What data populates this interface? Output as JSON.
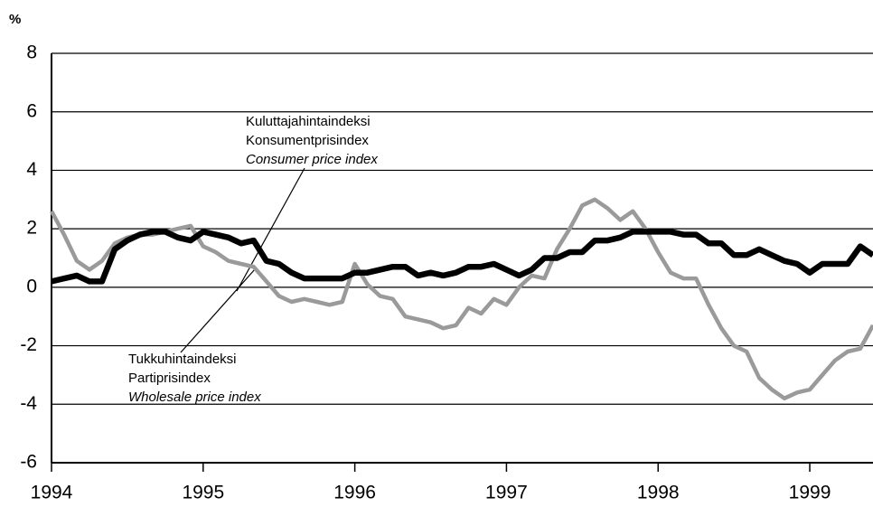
{
  "chart_data": {
    "type": "line",
    "ylabel": "%",
    "x": [
      1994,
      1994.083,
      1994.167,
      1994.25,
      1994.333,
      1994.417,
      1994.5,
      1994.583,
      1994.667,
      1994.75,
      1994.833,
      1994.917,
      1995,
      1995.083,
      1995.167,
      1995.25,
      1995.333,
      1995.417,
      1995.5,
      1995.583,
      1995.667,
      1995.75,
      1995.833,
      1995.917,
      1996,
      1996.083,
      1996.167,
      1996.25,
      1996.333,
      1996.417,
      1996.5,
      1996.583,
      1996.667,
      1996.75,
      1996.833,
      1996.917,
      1997,
      1997.083,
      1997.167,
      1997.25,
      1997.333,
      1997.417,
      1997.5,
      1997.583,
      1997.667,
      1997.75,
      1997.833,
      1997.917,
      1998,
      1998.083,
      1998.167,
      1998.25,
      1998.333,
      1998.417,
      1998.5,
      1998.583,
      1998.667,
      1998.75,
      1998.833,
      1998.917,
      1999,
      1999.083,
      1999.167,
      1999.25,
      1999.333,
      1999.417
    ],
    "series": [
      {
        "label_lines": [
          "Tukkuhintaindeksi",
          "Partiprisindex",
          "Wholesale price index"
        ],
        "color": "#9a9a9a",
        "values": [
          2.6,
          1.8,
          0.9,
          0.6,
          0.9,
          1.5,
          1.7,
          1.8,
          1.8,
          1.9,
          2.0,
          2.1,
          1.4,
          1.2,
          0.9,
          0.8,
          0.7,
          0.2,
          -0.3,
          -0.5,
          -0.4,
          -0.5,
          -0.6,
          -0.5,
          0.8,
          0.1,
          -0.3,
          -0.4,
          -1.0,
          -1.1,
          -1.2,
          -1.4,
          -1.3,
          -0.7,
          -0.9,
          -0.4,
          -0.6,
          0.0,
          0.4,
          0.3,
          1.3,
          2.0,
          2.8,
          3.0,
          2.7,
          2.3,
          2.6,
          2.0,
          1.2,
          0.5,
          0.3,
          0.3,
          -0.6,
          -1.4,
          -2.0,
          -2.2,
          -3.1,
          -3.5,
          -3.8,
          -3.6,
          -3.5,
          -3.0,
          -2.5,
          -2.2,
          -2.1,
          -1.3
        ]
      },
      {
        "label_lines": [
          "Kuluttajahintaindeksi",
          "Konsumentprisindex",
          "Consumer price index"
        ],
        "color": "#000000",
        "values": [
          0.2,
          0.3,
          0.4,
          0.2,
          0.2,
          1.3,
          1.6,
          1.8,
          1.9,
          1.9,
          1.7,
          1.6,
          1.9,
          1.8,
          1.7,
          1.5,
          1.6,
          0.9,
          0.8,
          0.5,
          0.3,
          0.3,
          0.3,
          0.3,
          0.5,
          0.5,
          0.6,
          0.7,
          0.7,
          0.4,
          0.5,
          0.4,
          0.5,
          0.7,
          0.7,
          0.8,
          0.6,
          0.4,
          0.6,
          1.0,
          1.0,
          1.2,
          1.2,
          1.6,
          1.6,
          1.7,
          1.9,
          1.9,
          1.9,
          1.9,
          1.8,
          1.8,
          1.5,
          1.5,
          1.1,
          1.1,
          1.3,
          1.1,
          0.9,
          0.8,
          0.5,
          0.8,
          0.8,
          0.8,
          1.4,
          1.1
        ]
      }
    ],
    "xlim": [
      1994,
      1999.417
    ],
    "xticks": [
      1994,
      1995,
      1996,
      1997,
      1998,
      1999
    ],
    "ylim": [
      -6,
      8
    ],
    "yticks": [
      -6,
      -4,
      -2,
      0,
      2,
      4,
      6,
      8
    ],
    "grid": true
  }
}
